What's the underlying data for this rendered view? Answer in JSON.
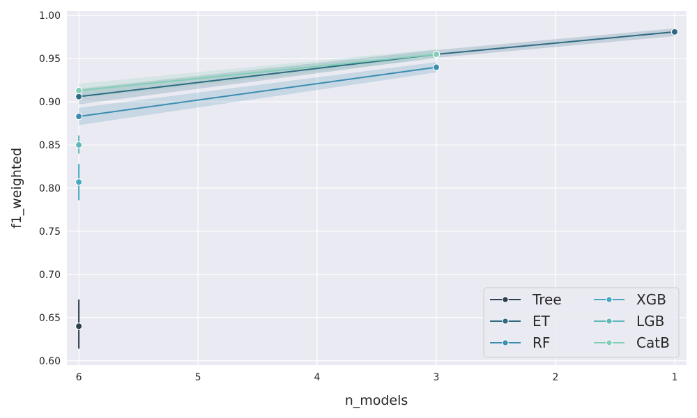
{
  "chart_data": {
    "type": "line",
    "title": "",
    "xlabel": "n_models",
    "ylabel": "f1_weighted",
    "x_axis": {
      "inverted": true,
      "lim": [
        6.1,
        0.9
      ],
      "ticks": [
        6,
        5,
        4,
        3,
        2,
        1
      ],
      "tick_labels": [
        "6",
        "5",
        "4",
        "3",
        "2",
        "1"
      ]
    },
    "y_axis": {
      "lim": [
        0.595,
        1.005
      ],
      "ticks": [
        0.6,
        0.65,
        0.7,
        0.75,
        0.8,
        0.85,
        0.9,
        0.95,
        1.0
      ],
      "tick_labels": [
        "0.60",
        "0.65",
        "0.70",
        "0.75",
        "0.80",
        "0.85",
        "0.90",
        "0.95",
        "1.00"
      ]
    },
    "grid": true,
    "style": "seaborn-darkgrid",
    "legend": {
      "placement": "lower-right",
      "columns": 2
    },
    "series": [
      {
        "name": "Tree",
        "color": "#2c3f4c",
        "points": [
          {
            "x": 6,
            "y": 0.64,
            "lo": 0.614,
            "hi": 0.671
          }
        ]
      },
      {
        "name": "ET",
        "color": "#2e6a80",
        "points": [
          {
            "x": 6,
            "y": 0.906,
            "lo": 0.897,
            "hi": 0.915
          },
          {
            "x": 3,
            "y": 0.955,
            "lo": 0.951,
            "hi": 0.96
          },
          {
            "x": 1,
            "y": 0.981,
            "lo": 0.976,
            "hi": 0.985
          }
        ]
      },
      {
        "name": "RF",
        "color": "#3a8db0",
        "points": [
          {
            "x": 6,
            "y": 0.883,
            "lo": 0.873,
            "hi": 0.893
          },
          {
            "x": 3,
            "y": 0.94,
            "lo": 0.934,
            "hi": 0.946
          }
        ]
      },
      {
        "name": "XGB",
        "color": "#49a7c2",
        "points": [
          {
            "x": 6,
            "y": 0.807,
            "lo": 0.786,
            "hi": 0.828
          }
        ]
      },
      {
        "name": "LGB",
        "color": "#5fb8bb",
        "points": [
          {
            "x": 6,
            "y": 0.85,
            "lo": 0.84,
            "hi": 0.861
          }
        ]
      },
      {
        "name": "CatB",
        "color": "#82cfb5",
        "points": [
          {
            "x": 6,
            "y": 0.913,
            "lo": 0.904,
            "hi": 0.921
          },
          {
            "x": 3,
            "y": 0.955,
            "lo": 0.95,
            "hi": 0.961
          }
        ]
      }
    ]
  }
}
